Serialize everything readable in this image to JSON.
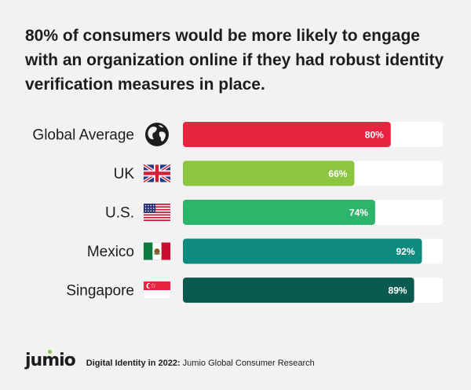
{
  "title": "80% of consumers would be more likely to engage with an organization online if they had robust identity verification measures in place.",
  "chart_data": {
    "type": "bar",
    "orientation": "horizontal",
    "categories": [
      "Global Average",
      "UK",
      "U.S.",
      "Mexico",
      "Singapore"
    ],
    "values": [
      80,
      66,
      74,
      92,
      89
    ],
    "value_labels": [
      "80%",
      "66%",
      "74%",
      "92%",
      "89%"
    ],
    "xlim": [
      0,
      100
    ],
    "icons": [
      "globe-icon",
      "uk-flag-icon",
      "us-flag-icon",
      "mexico-flag-icon",
      "singapore-flag-icon"
    ],
    "colors": [
      "#e8233f",
      "#8cc63f",
      "#2db56b",
      "#0f8a7e",
      "#0b5a50"
    ],
    "track_color": "#ffffff",
    "grid": false,
    "legend": "none"
  },
  "footer": {
    "logo": "jumio",
    "source_bold": "Digital Identity in 2022:",
    "source_rest": " Jumio Global Consumer Research"
  }
}
